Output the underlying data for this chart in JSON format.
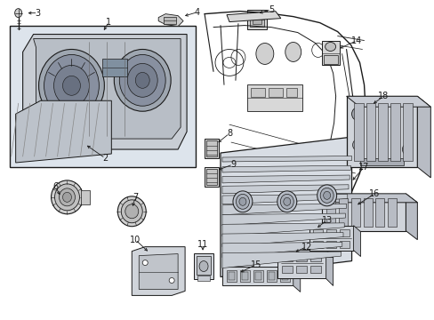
{
  "background_color": "#ffffff",
  "fig_width": 4.89,
  "fig_height": 3.6,
  "dpi": 100,
  "line_color": "#1a1a1a",
  "label_fontsize": 7.0,
  "box1_bg": "#e8ecf0",
  "part_bg": "#f0f0f0",
  "part_dark": "#c8c8c8",
  "part_mid": "#d8d8d8"
}
